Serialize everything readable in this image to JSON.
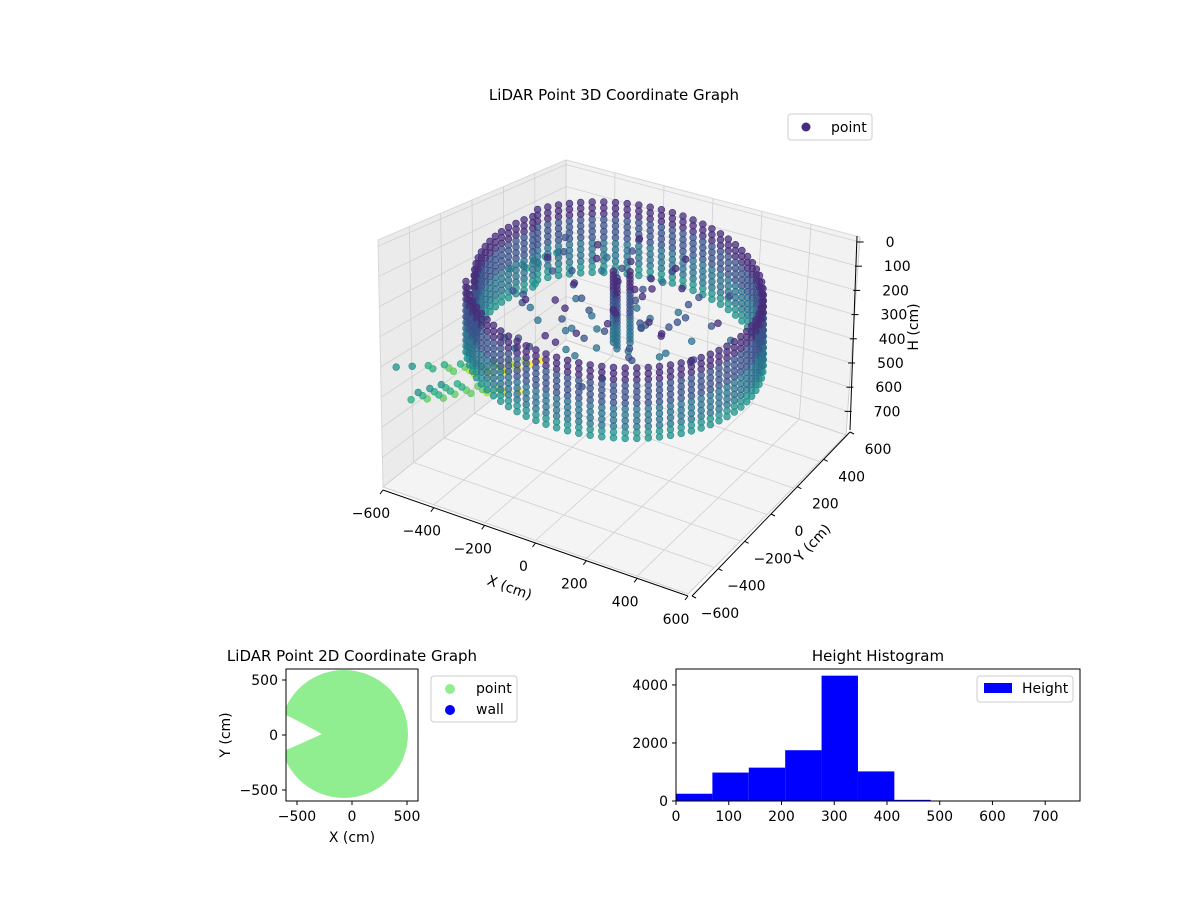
{
  "chart_data": [
    {
      "type": "scatter",
      "projection": "3d",
      "title": "LiDAR Point 3D Coordinate Graph",
      "xlabel": "X (cm)",
      "ylabel": "Y (cm)",
      "zlabel": "H (cm)",
      "xlim": [
        -600,
        600
      ],
      "ylim": [
        -600,
        600
      ],
      "zlim": [
        0,
        750
      ],
      "z_axis_inverted": true,
      "xticks": [
        "−600",
        "−400",
        "−200",
        "0",
        "200",
        "400",
        "600"
      ],
      "yticks": [
        "−600",
        "−400",
        "−200",
        "0",
        "200",
        "400",
        "600"
      ],
      "zticks": [
        "0",
        "100",
        "200",
        "300",
        "400",
        "500",
        "600",
        "700"
      ],
      "grid": true,
      "legend": {
        "placement": "top-right",
        "entries": [
          {
            "label": "point",
            "color": "#472d7b"
          }
        ]
      },
      "colormap": "viridis (color by height)",
      "series": [
        {
          "name": "point",
          "shape": "ring wall of radius ~550 cm spanning heights ~100-350 cm, with sparse low-height points near x=-600 and a central cluster",
          "sample_points": [
            {
              "x": 550,
              "y": 0,
              "z": 250
            },
            {
              "x": 0,
              "y": 550,
              "z": 200
            },
            {
              "x": -550,
              "y": 0,
              "z": 300
            },
            {
              "x": 0,
              "y": -550,
              "z": 330
            },
            {
              "x": -600,
              "y": -300,
              "z": 520
            },
            {
              "x": -600,
              "y": 200,
              "z": 600
            },
            {
              "x": 0,
              "y": 0,
              "z": 150
            }
          ]
        }
      ]
    },
    {
      "type": "scatter",
      "title": "LiDAR Point 2D Coordinate Graph",
      "xlabel": "X (cm)",
      "ylabel": "Y (cm)",
      "xlim": [
        -600,
        600
      ],
      "ylim": [
        -600,
        600
      ],
      "xticks": [
        "−500",
        "0",
        "500"
      ],
      "yticks": [
        "500",
        "0",
        "−500"
      ],
      "legend": {
        "placement": "outside-right",
        "entries": [
          {
            "label": "point",
            "color": "#90ee90"
          },
          {
            "label": "wall",
            "color": "#0000ff"
          }
        ]
      },
      "series": [
        {
          "name": "point",
          "shape": "filled disc of radius ~550 cm with a notch near (-500, 0)"
        }
      ]
    },
    {
      "type": "bar",
      "subtype": "histogram",
      "title": "Height Histogram",
      "xlim": [
        0,
        766
      ],
      "ylim": [
        0,
        4550
      ],
      "xticks": [
        "0",
        "100",
        "200",
        "300",
        "400",
        "500",
        "600",
        "700"
      ],
      "yticks": [
        "0",
        "2000",
        "4000"
      ],
      "legend": {
        "placement": "top-right",
        "entries": [
          {
            "label": "Height",
            "color": "#0000ff"
          }
        ]
      },
      "bin_edges": [
        0,
        69,
        138,
        207,
        276,
        345,
        414,
        483,
        552,
        621,
        690,
        759
      ],
      "counts": [
        250,
        980,
        1150,
        1750,
        4320,
        1020,
        40,
        5,
        5,
        3,
        2
      ],
      "color": "#0000ff"
    }
  ]
}
